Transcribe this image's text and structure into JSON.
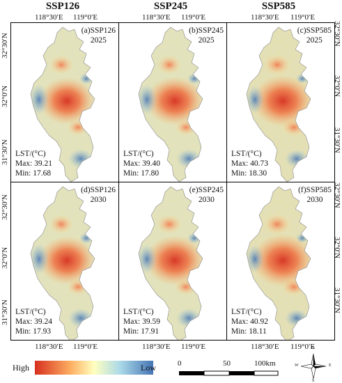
{
  "columns": [
    "SSP126",
    "SSP245",
    "SSP585"
  ],
  "x_ticks": [
    "118°30′E",
    "119°0′E"
  ],
  "y_ticks": [
    "32°30′N",
    "32°0′N",
    "31°30′N"
  ],
  "panels": [
    {
      "label": "(a)SSP126",
      "year": "2025",
      "unit": "LST/(°C)",
      "max": "Max: 39.21",
      "min": "Min: 17.68"
    },
    {
      "label": "(b)SSP245",
      "year": "2025",
      "unit": "LST/(°C)",
      "max": "Max: 39.40",
      "min": "Min: 17.80"
    },
    {
      "label": "(c)SSP585",
      "year": "2025",
      "unit": "LST/(°C)",
      "max": "Max: 40.73",
      "min": "Min: 18.30"
    },
    {
      "label": "(d)SSP126",
      "year": "2030",
      "unit": "LST/(°C)",
      "max": "Max: 39.24",
      "min": "Min: 17.93"
    },
    {
      "label": "(e)SSP245",
      "year": "2030",
      "unit": "LST/(°C)",
      "max": "Max: 39.59",
      "min": "Min: 17.91"
    },
    {
      "label": "(f)SSP585",
      "year": "2030",
      "unit": "LST/(°C)",
      "max": "Max: 40.92",
      "min": "Min: 18.11"
    }
  ],
  "legend": {
    "high": "High",
    "low": "Low",
    "colors": [
      "#d7301f",
      "#fdae61",
      "#ffffbf",
      "#abd9e9",
      "#4575b4"
    ]
  },
  "scale_bar": {
    "labels": [
      "0",
      "50",
      "100km"
    ]
  },
  "north_arrow": {
    "letters": [
      "N",
      "E",
      "S",
      "W"
    ]
  }
}
